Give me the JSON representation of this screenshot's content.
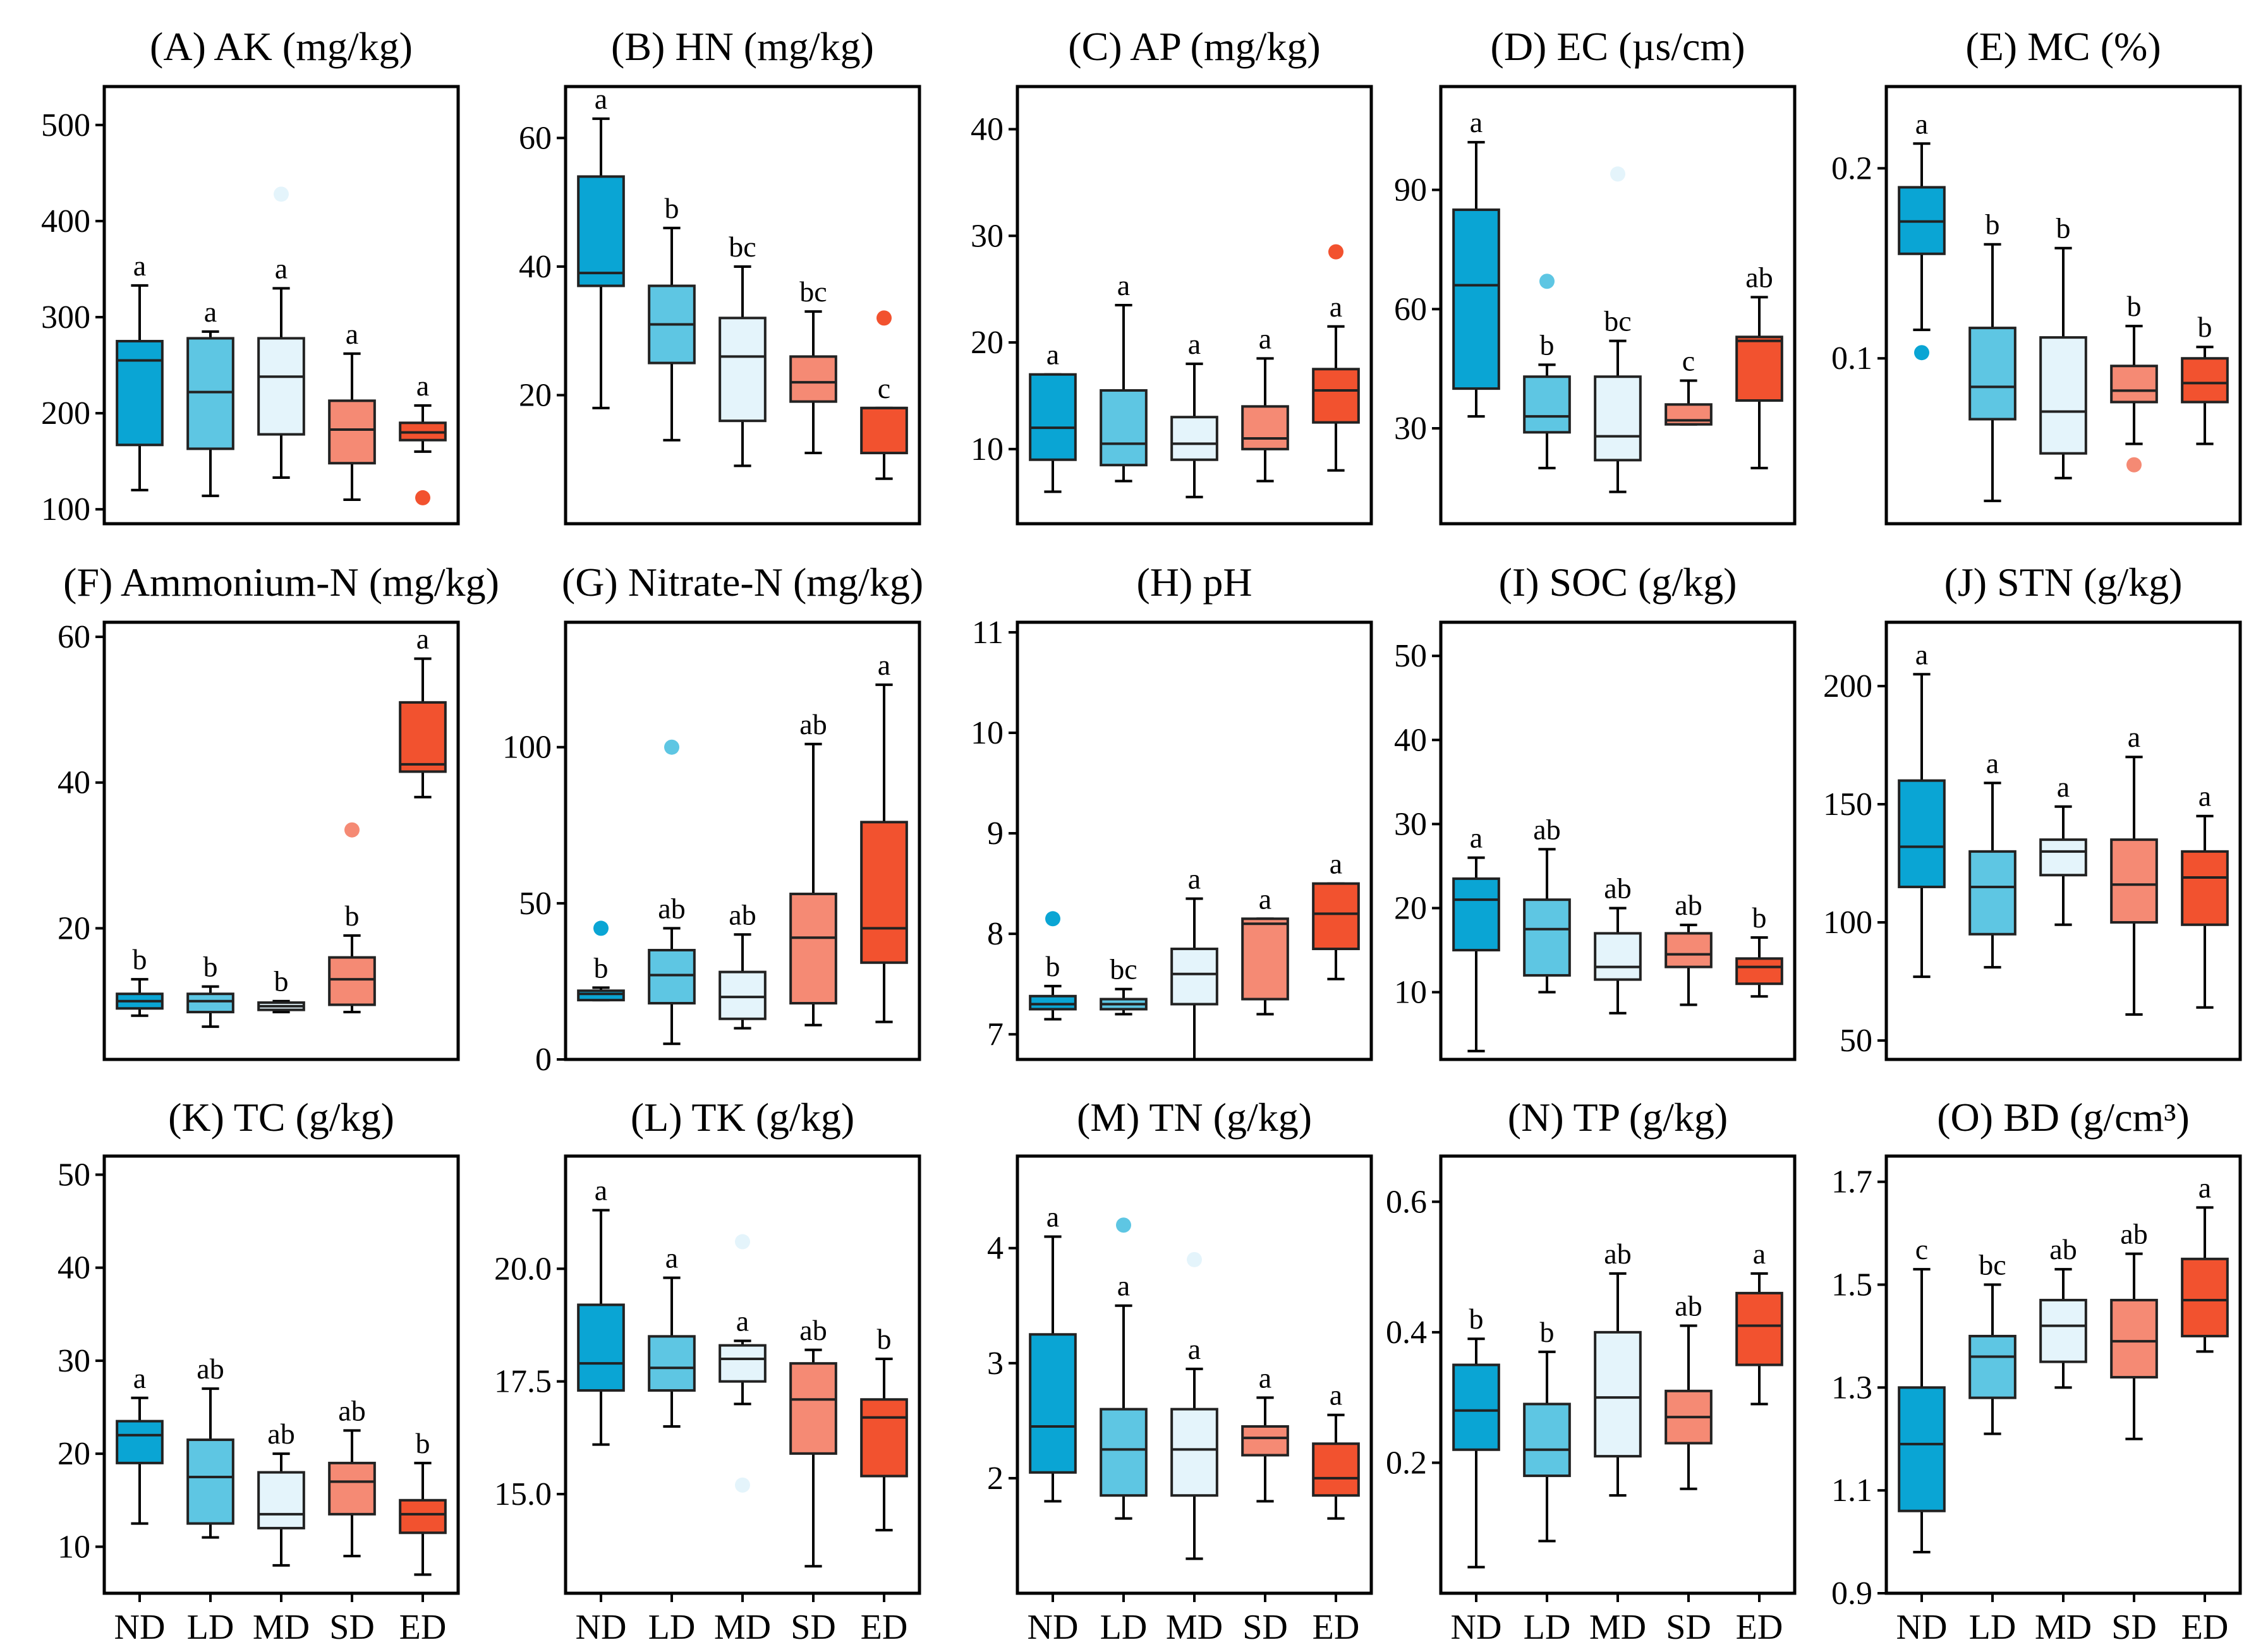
{
  "colors": {
    "ND": "#0aa5d4",
    "LD": "#5ec6e3",
    "MD": "#e4f4fb",
    "SD": "#f58a74",
    "ED": "#f2522f"
  },
  "chart_data": [
    {
      "type": "box",
      "title": "(A) AK (mg/kg)",
      "categories": [
        "ND",
        "LD",
        "MD",
        "SD",
        "ED"
      ],
      "ylim": [
        85,
        540
      ],
      "yticks": [
        100,
        200,
        300,
        400,
        500
      ],
      "boxes": [
        {
          "min": 120,
          "q1": 167,
          "median": 255,
          "q3": 275,
          "max": 333,
          "outliers": [],
          "label": "a"
        },
        {
          "min": 114,
          "q1": 163,
          "median": 222,
          "q3": 278,
          "max": 285,
          "outliers": [],
          "label": "a"
        },
        {
          "min": 133,
          "q1": 178,
          "median": 238,
          "q3": 278,
          "max": 330,
          "outliers": [
            428
          ],
          "label": "a"
        },
        {
          "min": 110,
          "q1": 148,
          "median": 183,
          "q3": 213,
          "max": 262,
          "outliers": [],
          "label": "a"
        },
        {
          "min": 160,
          "q1": 172,
          "median": 180,
          "q3": 190,
          "max": 208,
          "outliers": [
            112
          ],
          "label": "a"
        }
      ]
    },
    {
      "type": "box",
      "title": "(B) HN (mg/kg)",
      "categories": [
        "ND",
        "LD",
        "MD",
        "SD",
        "ED"
      ],
      "ylim": [
        0,
        68
      ],
      "yticks": [
        20,
        40,
        60
      ],
      "boxes": [
        {
          "min": 18,
          "q1": 37,
          "median": 39,
          "q3": 54,
          "max": 63,
          "outliers": [],
          "label": "a"
        },
        {
          "min": 13,
          "q1": 25,
          "median": 31,
          "q3": 37,
          "max": 46,
          "outliers": [],
          "label": "b"
        },
        {
          "min": 9,
          "q1": 16,
          "median": 26,
          "q3": 32,
          "max": 40,
          "outliers": [],
          "label": "bc"
        },
        {
          "min": 11,
          "q1": 19,
          "median": 22,
          "q3": 26,
          "max": 33,
          "outliers": [],
          "label": "bc"
        },
        {
          "min": 7,
          "q1": 11,
          "median": 18,
          "q3": 18,
          "max": 18,
          "outliers": [
            32
          ],
          "label": "c"
        }
      ]
    },
    {
      "type": "box",
      "title": "(C) AP (mg/kg)",
      "categories": [
        "ND",
        "LD",
        "MD",
        "SD",
        "ED"
      ],
      "ylim": [
        3,
        44
      ],
      "yticks": [
        10,
        20,
        30,
        40
      ],
      "boxes": [
        {
          "min": 6,
          "q1": 9,
          "median": 12,
          "q3": 17,
          "max": 17,
          "outliers": [],
          "label": "a"
        },
        {
          "min": 7,
          "q1": 8.5,
          "median": 10.5,
          "q3": 15.5,
          "max": 23.5,
          "outliers": [],
          "label": "a"
        },
        {
          "min": 5.5,
          "q1": 9,
          "median": 10.5,
          "q3": 13,
          "max": 18,
          "outliers": [],
          "label": "a"
        },
        {
          "min": 7,
          "q1": 10,
          "median": 11,
          "q3": 14,
          "max": 18.5,
          "outliers": [],
          "label": "a"
        },
        {
          "min": 8,
          "q1": 12.5,
          "median": 15.5,
          "q3": 17.5,
          "max": 21.5,
          "outliers": [
            28.5
          ],
          "label": "a"
        }
      ]
    },
    {
      "type": "box",
      "title": "(D) EC (µs/cm)",
      "categories": [
        "ND",
        "LD",
        "MD",
        "SD",
        "ED"
      ],
      "ylim": [
        6,
        116
      ],
      "yticks": [
        30,
        60,
        90
      ],
      "boxes": [
        {
          "min": 33,
          "q1": 40,
          "median": 66,
          "q3": 85,
          "max": 102,
          "outliers": [],
          "label": "a"
        },
        {
          "min": 20,
          "q1": 29,
          "median": 33,
          "q3": 43,
          "max": 46,
          "outliers": [
            67
          ],
          "label": "b"
        },
        {
          "min": 14,
          "q1": 22,
          "median": 28,
          "q3": 43,
          "max": 52,
          "outliers": [
            94
          ],
          "label": "bc"
        },
        {
          "min": 31,
          "q1": 31,
          "median": 32,
          "q3": 36,
          "max": 42,
          "outliers": [],
          "label": "c"
        },
        {
          "min": 20,
          "q1": 37,
          "median": 52,
          "q3": 53,
          "max": 63,
          "outliers": [],
          "label": "ab"
        }
      ]
    },
    {
      "type": "box",
      "title": "(E) MC (%)",
      "categories": [
        "ND",
        "LD",
        "MD",
        "SD",
        "ED"
      ],
      "ylim": [
        0.013,
        0.243
      ],
      "yticks": [
        0.1,
        0.2
      ],
      "boxes": [
        {
          "min": 0.115,
          "q1": 0.155,
          "median": 0.172,
          "q3": 0.19,
          "max": 0.213,
          "outliers": [
            0.103
          ],
          "label": "a"
        },
        {
          "min": 0.025,
          "q1": 0.068,
          "median": 0.085,
          "q3": 0.116,
          "max": 0.16,
          "outliers": [],
          "label": "b"
        },
        {
          "min": 0.037,
          "q1": 0.05,
          "median": 0.072,
          "q3": 0.111,
          "max": 0.158,
          "outliers": [],
          "label": "b"
        },
        {
          "min": 0.055,
          "q1": 0.077,
          "median": 0.083,
          "q3": 0.096,
          "max": 0.117,
          "outliers": [
            0.044
          ],
          "label": "b"
        },
        {
          "min": 0.055,
          "q1": 0.077,
          "median": 0.087,
          "q3": 0.1,
          "max": 0.106,
          "outliers": [],
          "label": "b"
        }
      ]
    },
    {
      "type": "box",
      "title": "(F) Ammonium-N (mg/kg)",
      "categories": [
        "ND",
        "LD",
        "MD",
        "SD",
        "ED"
      ],
      "ylim": [
        2,
        62
      ],
      "yticks": [
        20,
        40,
        60
      ],
      "boxes": [
        {
          "min": 8,
          "q1": 9,
          "median": 10,
          "q3": 11,
          "max": 13,
          "outliers": [],
          "label": "b"
        },
        {
          "min": 6.5,
          "q1": 8.5,
          "median": 10,
          "q3": 11,
          "max": 12,
          "outliers": [],
          "label": "b"
        },
        {
          "min": 8.5,
          "q1": 8.8,
          "median": 9.3,
          "q3": 9.8,
          "max": 10,
          "outliers": [],
          "label": "b"
        },
        {
          "min": 8.5,
          "q1": 9.5,
          "median": 13,
          "q3": 16,
          "max": 19,
          "outliers": [
            33.5
          ],
          "label": "b"
        },
        {
          "min": 38,
          "q1": 41.5,
          "median": 42.5,
          "q3": 51,
          "max": 57,
          "outliers": [],
          "label": "a"
        }
      ]
    },
    {
      "type": "box",
      "title": "(G) Nitrate-N (mg/kg)",
      "categories": [
        "ND",
        "LD",
        "MD",
        "SD",
        "ED"
      ],
      "ylim": [
        0,
        140
      ],
      "yticks": [
        0,
        50,
        100
      ],
      "boxes": [
        {
          "min": 19,
          "q1": 19,
          "median": 21,
          "q3": 22,
          "max": 23,
          "outliers": [
            42
          ],
          "label": "b"
        },
        {
          "min": 5,
          "q1": 18,
          "median": 27,
          "q3": 35,
          "max": 42,
          "outliers": [
            100
          ],
          "label": "ab"
        },
        {
          "min": 10,
          "q1": 13,
          "median": 20,
          "q3": 28,
          "max": 40,
          "outliers": [],
          "label": "ab"
        },
        {
          "min": 11,
          "q1": 18,
          "median": 39,
          "q3": 53,
          "max": 101,
          "outliers": [],
          "label": "ab"
        },
        {
          "min": 12,
          "q1": 31,
          "median": 42,
          "q3": 76,
          "max": 120,
          "outliers": [],
          "label": "a"
        }
      ]
    },
    {
      "type": "box",
      "title": "(H) pH",
      "categories": [
        "ND",
        "LD",
        "MD",
        "SD",
        "ED"
      ],
      "ylim": [
        6.75,
        11.1
      ],
      "yticks": [
        7,
        8,
        9,
        10,
        11
      ],
      "boxes": [
        {
          "min": 7.15,
          "q1": 7.25,
          "median": 7.3,
          "q3": 7.38,
          "max": 7.48,
          "outliers": [
            8.15
          ],
          "label": "b"
        },
        {
          "min": 7.2,
          "q1": 7.25,
          "median": 7.3,
          "q3": 7.35,
          "max": 7.45,
          "outliers": [],
          "label": "bc"
        },
        {
          "min": 6.75,
          "q1": 7.3,
          "median": 7.6,
          "q3": 7.85,
          "max": 8.35,
          "outliers": [],
          "label": "a"
        },
        {
          "min": 7.2,
          "q1": 7.35,
          "median": 8.1,
          "q3": 8.15,
          "max": 8.15,
          "outliers": [],
          "label": "a"
        },
        {
          "min": 7.55,
          "q1": 7.85,
          "median": 8.2,
          "q3": 8.5,
          "max": 8.5,
          "outliers": [],
          "label": "a"
        }
      ]
    },
    {
      "type": "box",
      "title": "(I) SOC (g/kg)",
      "categories": [
        "ND",
        "LD",
        "MD",
        "SD",
        "ED"
      ],
      "ylim": [
        2,
        54
      ],
      "yticks": [
        10,
        20,
        30,
        40,
        50
      ],
      "boxes": [
        {
          "min": 3,
          "q1": 15,
          "median": 21,
          "q3": 23.5,
          "max": 26,
          "outliers": [],
          "label": "a"
        },
        {
          "min": 10,
          "q1": 12,
          "median": 17.5,
          "q3": 21,
          "max": 27,
          "outliers": [],
          "label": "ab"
        },
        {
          "min": 7.5,
          "q1": 11.5,
          "median": 13,
          "q3": 17,
          "max": 20,
          "outliers": [],
          "label": "ab"
        },
        {
          "min": 8.5,
          "q1": 13,
          "median": 14.5,
          "q3": 17,
          "max": 18,
          "outliers": [],
          "label": "ab"
        },
        {
          "min": 9.5,
          "q1": 11,
          "median": 13,
          "q3": 14,
          "max": 16.5,
          "outliers": [],
          "label": "b"
        }
      ]
    },
    {
      "type": "box",
      "title": "(J) STN (g/kg)",
      "categories": [
        "ND",
        "LD",
        "MD",
        "SD",
        "ED"
      ],
      "ylim": [
        42,
        227
      ],
      "yticks": [
        50,
        100,
        150,
        200
      ],
      "boxes": [
        {
          "min": 77,
          "q1": 115,
          "median": 132,
          "q3": 160,
          "max": 205,
          "outliers": [],
          "label": "a"
        },
        {
          "min": 81,
          "q1": 95,
          "median": 115,
          "q3": 130,
          "max": 159,
          "outliers": [],
          "label": "a"
        },
        {
          "min": 99,
          "q1": 120,
          "median": 130,
          "q3": 135,
          "max": 149,
          "outliers": [],
          "label": "a"
        },
        {
          "min": 61,
          "q1": 100,
          "median": 116,
          "q3": 135,
          "max": 170,
          "outliers": [],
          "label": "a"
        },
        {
          "min": 64,
          "q1": 99,
          "median": 119,
          "q3": 130,
          "max": 145,
          "outliers": [],
          "label": "a"
        }
      ]
    },
    {
      "type": "box",
      "title": "(K) TC (g/kg)",
      "categories": [
        "ND",
        "LD",
        "MD",
        "SD",
        "ED"
      ],
      "ylim": [
        5,
        52
      ],
      "yticks": [
        10,
        20,
        30,
        40,
        50
      ],
      "boxes": [
        {
          "min": 12.5,
          "q1": 19,
          "median": 22,
          "q3": 23.5,
          "max": 26,
          "outliers": [],
          "label": "a"
        },
        {
          "min": 11,
          "q1": 12.5,
          "median": 17.5,
          "q3": 21.5,
          "max": 27,
          "outliers": [],
          "label": "ab"
        },
        {
          "min": 8,
          "q1": 12,
          "median": 13.5,
          "q3": 18,
          "max": 20,
          "outliers": [],
          "label": "ab"
        },
        {
          "min": 9,
          "q1": 13.5,
          "median": 17,
          "q3": 19,
          "max": 22.5,
          "outliers": [],
          "label": "ab"
        },
        {
          "min": 7,
          "q1": 11.5,
          "median": 13.5,
          "q3": 15,
          "max": 19,
          "outliers": [],
          "label": "b"
        }
      ]
    },
    {
      "type": "box",
      "title": "(L) TK (g/kg)",
      "categories": [
        "ND",
        "LD",
        "MD",
        "SD",
        "ED"
      ],
      "ylim": [
        12.8,
        22.5
      ],
      "yticks": [
        15.0,
        17.5,
        20.0
      ],
      "boxes": [
        {
          "min": 16.1,
          "q1": 17.3,
          "median": 17.9,
          "q3": 19.2,
          "max": 21.3,
          "outliers": [],
          "label": "a"
        },
        {
          "min": 16.5,
          "q1": 17.3,
          "median": 17.8,
          "q3": 18.5,
          "max": 19.8,
          "outliers": [],
          "label": "a"
        },
        {
          "min": 17.0,
          "q1": 17.5,
          "median": 18.0,
          "q3": 18.3,
          "max": 18.4,
          "outliers": [
            20.6,
            15.2
          ],
          "label": "a"
        },
        {
          "min": 13.4,
          "q1": 15.9,
          "median": 17.1,
          "q3": 17.9,
          "max": 18.2,
          "outliers": [],
          "label": "ab"
        },
        {
          "min": 14.2,
          "q1": 15.4,
          "median": 16.7,
          "q3": 17.1,
          "max": 18.0,
          "outliers": [],
          "label": "b"
        }
      ]
    },
    {
      "type": "box",
      "title": "(M) TN (g/kg)",
      "categories": [
        "ND",
        "LD",
        "MD",
        "SD",
        "ED"
      ],
      "ylim": [
        1.0,
        4.8
      ],
      "yticks": [
        2,
        3,
        4
      ],
      "boxes": [
        {
          "min": 1.8,
          "q1": 2.05,
          "median": 2.45,
          "q3": 3.25,
          "max": 4.1,
          "outliers": [],
          "label": "a"
        },
        {
          "min": 1.65,
          "q1": 1.85,
          "median": 2.25,
          "q3": 2.6,
          "max": 3.5,
          "outliers": [
            4.2
          ],
          "label": "a"
        },
        {
          "min": 1.3,
          "q1": 1.85,
          "median": 2.25,
          "q3": 2.6,
          "max": 2.95,
          "outliers": [
            3.9
          ],
          "label": "a"
        },
        {
          "min": 1.8,
          "q1": 2.2,
          "median": 2.35,
          "q3": 2.45,
          "max": 2.7,
          "outliers": [],
          "label": "a"
        },
        {
          "min": 1.65,
          "q1": 1.85,
          "median": 2.0,
          "q3": 2.3,
          "max": 2.55,
          "outliers": [],
          "label": "a"
        }
      ]
    },
    {
      "type": "box",
      "title": "(N) TP (g/kg)",
      "categories": [
        "ND",
        "LD",
        "MD",
        "SD",
        "ED"
      ],
      "ylim": [
        0.0,
        0.67
      ],
      "yticks": [
        0.2,
        0.4,
        0.6
      ],
      "boxes": [
        {
          "min": 0.04,
          "q1": 0.22,
          "median": 0.28,
          "q3": 0.35,
          "max": 0.39,
          "outliers": [],
          "label": "b"
        },
        {
          "min": 0.08,
          "q1": 0.18,
          "median": 0.22,
          "q3": 0.29,
          "max": 0.37,
          "outliers": [],
          "label": "b"
        },
        {
          "min": 0.15,
          "q1": 0.21,
          "median": 0.3,
          "q3": 0.4,
          "max": 0.49,
          "outliers": [],
          "label": "ab"
        },
        {
          "min": 0.16,
          "q1": 0.23,
          "median": 0.27,
          "q3": 0.31,
          "max": 0.41,
          "outliers": [],
          "label": "ab"
        },
        {
          "min": 0.29,
          "q1": 0.35,
          "median": 0.41,
          "q3": 0.46,
          "max": 0.49,
          "outliers": [],
          "label": "a"
        }
      ]
    },
    {
      "type": "box",
      "title": "(O) BD (g/cm³)",
      "categories": [
        "ND",
        "LD",
        "MD",
        "SD",
        "ED"
      ],
      "ylim": [
        0.9,
        1.75
      ],
      "yticks": [
        0.9,
        1.1,
        1.3,
        1.5,
        1.7
      ],
      "boxes": [
        {
          "min": 0.98,
          "q1": 1.06,
          "median": 1.19,
          "q3": 1.3,
          "max": 1.53,
          "outliers": [],
          "label": "c"
        },
        {
          "min": 1.21,
          "q1": 1.28,
          "median": 1.36,
          "q3": 1.4,
          "max": 1.5,
          "outliers": [],
          "label": "bc"
        },
        {
          "min": 1.3,
          "q1": 1.35,
          "median": 1.42,
          "q3": 1.47,
          "max": 1.53,
          "outliers": [],
          "label": "ab"
        },
        {
          "min": 1.2,
          "q1": 1.32,
          "median": 1.39,
          "q3": 1.47,
          "max": 1.56,
          "outliers": [],
          "label": "ab"
        },
        {
          "min": 1.37,
          "q1": 1.4,
          "median": 1.47,
          "q3": 1.55,
          "max": 1.65,
          "outliers": [],
          "label": "a"
        }
      ]
    }
  ]
}
